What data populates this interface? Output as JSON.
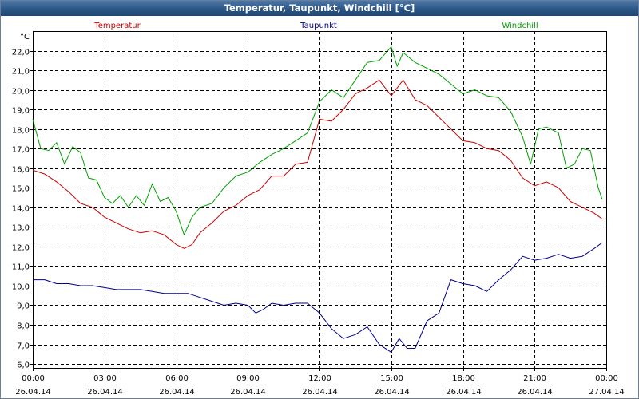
{
  "window": {
    "title": "Temperatur, Taupunkt, Windchill [°C]"
  },
  "chart_data": {
    "type": "line",
    "title": "Temperatur, Taupunkt, Windchill [°C]",
    "ylabel": "°C",
    "ylim": [
      5.8,
      23.0
    ],
    "y_ticks": [
      6.0,
      7.0,
      8.0,
      9.0,
      10.0,
      11.0,
      12.0,
      13.0,
      14.0,
      15.0,
      16.0,
      17.0,
      18.0,
      19.0,
      20.0,
      21.0,
      22.0
    ],
    "y_tick_labels": [
      "6,0",
      "7,0",
      "8,0",
      "9,0",
      "10,0",
      "11,0",
      "12,0",
      "13,0",
      "14,0",
      "15,0",
      "16,0",
      "17,0",
      "18,0",
      "19,0",
      "20,0",
      "21,0",
      "22,0"
    ],
    "xlim": [
      "26.04.14 00:00",
      "27.04.14 00:00"
    ],
    "x_tick_labels": [
      {
        "time": "00:00",
        "date": "26.04.14"
      },
      {
        "time": "03:00",
        "date": "26.04.14"
      },
      {
        "time": "06:00",
        "date": "26.04.14"
      },
      {
        "time": "09:00",
        "date": "26.04.14"
      },
      {
        "time": "12:00",
        "date": "26.04.14"
      },
      {
        "time": "15:00",
        "date": "26.04.14"
      },
      {
        "time": "18:00",
        "date": "26.04.14"
      },
      {
        "time": "21:00",
        "date": "26.04.14"
      },
      {
        "time": "00:00",
        "date": "27.04.14"
      }
    ],
    "grid": true,
    "legend_position": "top",
    "series": [
      {
        "name": "Temperatur",
        "color": "#cc0000",
        "points": [
          [
            "26.04.14 00:00",
            15.9
          ],
          [
            "26.04.14 00:30",
            15.7
          ],
          [
            "26.04.14 01:00",
            15.3
          ],
          [
            "26.04.14 01:30",
            14.8
          ],
          [
            "26.04.14 02:00",
            14.2
          ],
          [
            "26.04.14 02:30",
            14.0
          ],
          [
            "26.04.14 03:00",
            13.5
          ],
          [
            "26.04.14 03:30",
            13.2
          ],
          [
            "26.04.14 04:00",
            12.9
          ],
          [
            "26.04.14 04:30",
            12.7
          ],
          [
            "26.04.14 05:00",
            12.8
          ],
          [
            "26.04.14 05:30",
            12.6
          ],
          [
            "26.04.14 06:00",
            12.1
          ],
          [
            "26.04.14 06:20",
            11.9
          ],
          [
            "26.04.14 06:40",
            12.1
          ],
          [
            "26.04.14 07:00",
            12.7
          ],
          [
            "26.04.14 07:30",
            13.2
          ],
          [
            "26.04.14 08:00",
            13.8
          ],
          [
            "26.04.14 08:30",
            14.1
          ],
          [
            "26.04.14 09:00",
            14.6
          ],
          [
            "26.04.14 09:30",
            14.9
          ],
          [
            "26.04.14 10:00",
            15.6
          ],
          [
            "26.04.14 10:30",
            15.6
          ],
          [
            "26.04.14 11:00",
            16.2
          ],
          [
            "26.04.14 11:30",
            16.3
          ],
          [
            "26.04.14 12:00",
            18.5
          ],
          [
            "26.04.14 12:30",
            18.4
          ],
          [
            "26.04.14 13:00",
            19.0
          ],
          [
            "26.04.14 13:30",
            19.8
          ],
          [
            "26.04.14 14:00",
            20.1
          ],
          [
            "26.04.14 14:30",
            20.5
          ],
          [
            "26.04.14 15:00",
            19.7
          ],
          [
            "26.04.14 15:30",
            20.5
          ],
          [
            "26.04.14 16:00",
            19.5
          ],
          [
            "26.04.14 16:30",
            19.2
          ],
          [
            "26.04.14 17:00",
            18.6
          ],
          [
            "26.04.14 17:30",
            18.0
          ],
          [
            "26.04.14 18:00",
            17.4
          ],
          [
            "26.04.14 18:30",
            17.3
          ],
          [
            "26.04.14 19:00",
            17.0
          ],
          [
            "26.04.14 19:30",
            16.9
          ],
          [
            "26.04.14 20:00",
            16.4
          ],
          [
            "26.04.14 20:30",
            15.5
          ],
          [
            "26.04.14 21:00",
            15.1
          ],
          [
            "26.04.14 21:30",
            15.3
          ],
          [
            "26.04.14 22:00",
            15.0
          ],
          [
            "26.04.14 22:30",
            14.3
          ],
          [
            "26.04.14 23:00",
            14.0
          ],
          [
            "26.04.14 23:30",
            13.7
          ],
          [
            "26.04.14 23:50",
            13.4
          ]
        ]
      },
      {
        "name": "Taupunkt",
        "color": "#00008b",
        "points": [
          [
            "26.04.14 00:00",
            10.3
          ],
          [
            "26.04.14 00:30",
            10.3
          ],
          [
            "26.04.14 01:00",
            10.1
          ],
          [
            "26.04.14 01:30",
            10.1
          ],
          [
            "26.04.14 02:00",
            10.0
          ],
          [
            "26.04.14 02:30",
            10.0
          ],
          [
            "26.04.14 03:00",
            9.9
          ],
          [
            "26.04.14 03:30",
            9.8
          ],
          [
            "26.04.14 04:00",
            9.8
          ],
          [
            "26.04.14 04:30",
            9.8
          ],
          [
            "26.04.14 05:00",
            9.7
          ],
          [
            "26.04.14 05:30",
            9.6
          ],
          [
            "26.04.14 06:00",
            9.6
          ],
          [
            "26.04.14 06:30",
            9.6
          ],
          [
            "26.04.14 07:00",
            9.4
          ],
          [
            "26.04.14 07:30",
            9.2
          ],
          [
            "26.04.14 08:00",
            9.0
          ],
          [
            "26.04.14 08:30",
            9.1
          ],
          [
            "26.04.14 09:00",
            9.0
          ],
          [
            "26.04.14 09:20",
            8.6
          ],
          [
            "26.04.14 09:40",
            8.8
          ],
          [
            "26.04.14 10:00",
            9.1
          ],
          [
            "26.04.14 10:30",
            9.0
          ],
          [
            "26.04.14 11:00",
            9.1
          ],
          [
            "26.04.14 11:30",
            9.1
          ],
          [
            "26.04.14 12:00",
            8.6
          ],
          [
            "26.04.14 12:30",
            7.8
          ],
          [
            "26.04.14 13:00",
            7.3
          ],
          [
            "26.04.14 13:30",
            7.5
          ],
          [
            "26.04.14 14:00",
            7.9
          ],
          [
            "26.04.14 14:30",
            7.0
          ],
          [
            "26.04.14 15:00",
            6.6
          ],
          [
            "26.04.14 15:20",
            7.3
          ],
          [
            "26.04.14 15:40",
            6.8
          ],
          [
            "26.04.14 16:00",
            6.8
          ],
          [
            "26.04.14 16:30",
            8.2
          ],
          [
            "26.04.14 17:00",
            8.6
          ],
          [
            "26.04.14 17:30",
            10.3
          ],
          [
            "26.04.14 18:00",
            10.1
          ],
          [
            "26.04.14 18:30",
            10.0
          ],
          [
            "26.04.14 19:00",
            9.7
          ],
          [
            "26.04.14 19:30",
            10.3
          ],
          [
            "26.04.14 20:00",
            10.8
          ],
          [
            "26.04.14 20:30",
            11.5
          ],
          [
            "26.04.14 21:00",
            11.3
          ],
          [
            "26.04.14 21:30",
            11.4
          ],
          [
            "26.04.14 22:00",
            11.6
          ],
          [
            "26.04.14 22:30",
            11.4
          ],
          [
            "26.04.14 23:00",
            11.5
          ],
          [
            "26.04.14 23:30",
            11.9
          ],
          [
            "26.04.14 23:50",
            12.2
          ]
        ]
      },
      {
        "name": "Windchill",
        "color": "#00a000",
        "points": [
          [
            "26.04.14 00:00",
            18.5
          ],
          [
            "26.04.14 00:20",
            17.0
          ],
          [
            "26.04.14 00:40",
            16.9
          ],
          [
            "26.04.14 01:00",
            17.3
          ],
          [
            "26.04.14 01:20",
            16.2
          ],
          [
            "26.04.14 01:40",
            17.1
          ],
          [
            "26.04.14 02:00",
            16.8
          ],
          [
            "26.04.14 02:20",
            15.5
          ],
          [
            "26.04.14 02:40",
            15.4
          ],
          [
            "26.04.14 03:00",
            14.5
          ],
          [
            "26.04.14 03:20",
            14.2
          ],
          [
            "26.04.14 03:40",
            14.6
          ],
          [
            "26.04.14 04:00",
            14.0
          ],
          [
            "26.04.14 04:20",
            14.6
          ],
          [
            "26.04.14 04:40",
            14.1
          ],
          [
            "26.04.14 05:00",
            15.2
          ],
          [
            "26.04.14 05:20",
            14.3
          ],
          [
            "26.04.14 05:40",
            14.5
          ],
          [
            "26.04.14 06:00",
            13.8
          ],
          [
            "26.04.14 06:20",
            12.6
          ],
          [
            "26.04.14 06:40",
            13.5
          ],
          [
            "26.04.14 07:00",
            14.0
          ],
          [
            "26.04.14 07:30",
            14.2
          ],
          [
            "26.04.14 08:00",
            15.0
          ],
          [
            "26.04.14 08:30",
            15.6
          ],
          [
            "26.04.14 09:00",
            15.8
          ],
          [
            "26.04.14 09:30",
            16.3
          ],
          [
            "26.04.14 10:00",
            16.7
          ],
          [
            "26.04.14 10:30",
            17.0
          ],
          [
            "26.04.14 11:00",
            17.4
          ],
          [
            "26.04.14 11:30",
            17.8
          ],
          [
            "26.04.14 12:00",
            19.4
          ],
          [
            "26.04.14 12:30",
            20.0
          ],
          [
            "26.04.14 13:00",
            19.6
          ],
          [
            "26.04.14 13:30",
            20.5
          ],
          [
            "26.04.14 14:00",
            21.4
          ],
          [
            "26.04.14 14:30",
            21.5
          ],
          [
            "26.04.14 15:00",
            22.2
          ],
          [
            "26.04.14 15:15",
            21.2
          ],
          [
            "26.04.14 15:30",
            21.9
          ],
          [
            "26.04.14 16:00",
            21.4
          ],
          [
            "26.04.14 16:30",
            21.1
          ],
          [
            "26.04.14 17:00",
            20.8
          ],
          [
            "26.04.14 17:30",
            20.3
          ],
          [
            "26.04.14 18:00",
            19.8
          ],
          [
            "26.04.14 18:30",
            20.0
          ],
          [
            "26.04.14 19:00",
            19.7
          ],
          [
            "26.04.14 19:30",
            19.6
          ],
          [
            "26.04.14 20:00",
            18.9
          ],
          [
            "26.04.14 20:30",
            17.6
          ],
          [
            "26.04.14 20:50",
            16.2
          ],
          [
            "26.04.14 21:10",
            18.0
          ],
          [
            "26.04.14 21:30",
            18.1
          ],
          [
            "26.04.14 22:00",
            17.8
          ],
          [
            "26.04.14 22:20",
            16.0
          ],
          [
            "26.04.14 22:40",
            16.2
          ],
          [
            "26.04.14 23:00",
            17.0
          ],
          [
            "26.04.14 23:20",
            16.9
          ],
          [
            "26.04.14 23:40",
            15.0
          ],
          [
            "26.04.14 23:50",
            14.4
          ]
        ]
      }
    ]
  }
}
